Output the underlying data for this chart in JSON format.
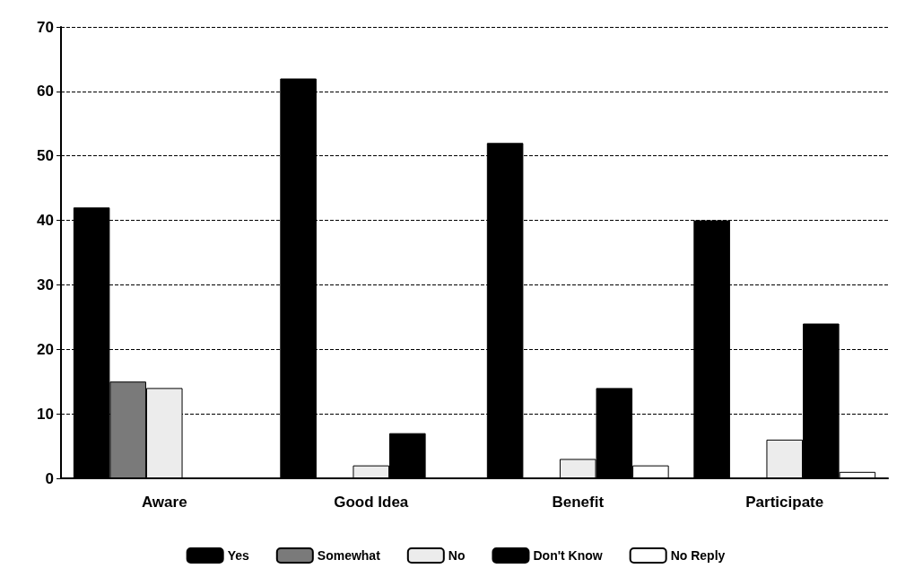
{
  "chart_data": {
    "type": "bar",
    "categories": [
      "Aware",
      "Good Idea",
      "Benefit",
      "Participate"
    ],
    "series": [
      {
        "name": "Yes",
        "color": "#000000",
        "values": [
          42,
          62,
          52,
          40
        ]
      },
      {
        "name": "Somewhat",
        "color": "#7a7a7a",
        "values": [
          15,
          0,
          0,
          0
        ]
      },
      {
        "name": "No",
        "color": "#ececec",
        "values": [
          14,
          2,
          3,
          6
        ]
      },
      {
        "name": "Don't Know",
        "color": "#000000",
        "values": [
          0,
          7,
          14,
          24
        ]
      },
      {
        "name": "No Reply",
        "color": "#ffffff",
        "values": [
          0,
          0,
          2,
          1
        ]
      }
    ],
    "ylim": [
      0,
      70
    ],
    "yticks": [
      0,
      10,
      20,
      30,
      40,
      50,
      60,
      70
    ],
    "grid": "y",
    "legend": "bottom"
  }
}
